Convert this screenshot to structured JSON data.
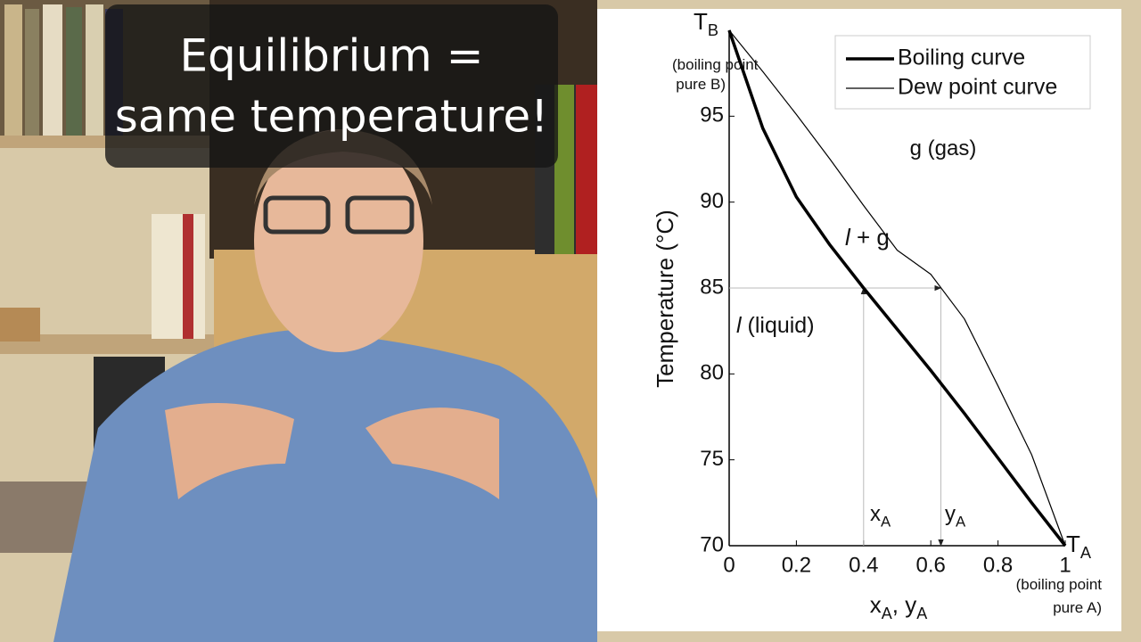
{
  "caption": [
    "Equilibrium =",
    "same temperature!"
  ],
  "chart_data": {
    "type": "line",
    "xlabel": [
      {
        "text": "x",
        "sub": "A"
      },
      {
        "text": ", y",
        "sub": "A"
      }
    ],
    "ylabel": "Temperature (°C)",
    "xlim": [
      0,
      1
    ],
    "ylim": [
      70,
      100
    ],
    "xticks": [
      0,
      0.2,
      0.4,
      0.6,
      0.8,
      1
    ],
    "yticks": [
      70,
      75,
      80,
      85,
      90,
      95
    ],
    "x": [
      0,
      0.1,
      0.2,
      0.3,
      0.4,
      0.5,
      0.6,
      0.7,
      0.8,
      0.9,
      1
    ],
    "series": [
      {
        "name": "Boiling curve",
        "color": "#000000",
        "width": 3.5,
        "values": [
          100,
          94.3,
          90.3,
          87.5,
          85,
          82.6,
          80.2,
          77.7,
          75.1,
          72.5,
          70
        ]
      },
      {
        "name": "Dew point curve",
        "color": "#000000",
        "width": 1.2,
        "values": [
          100,
          97.6,
          95.1,
          92.5,
          89.8,
          87.2,
          85.8,
          83.2,
          79.3,
          75.3,
          70
        ]
      }
    ],
    "tie_line": {
      "y": 85,
      "x_liquid": 0.4,
      "x_vapor": 0.63
    },
    "legend": "upper right",
    "annotations": [
      {
        "text": "g (gas)"
      },
      {
        "italic": "l",
        "text": " + g"
      },
      {
        "italic": "l",
        "text": " (liquid)"
      },
      {
        "text": "x",
        "sub": "A"
      },
      {
        "text": "y",
        "sub": "A"
      },
      {
        "text": "T",
        "sub": "B"
      },
      {
        "text": "(boiling point"
      },
      {
        "text": "pure B)"
      },
      {
        "text": "T",
        "sub": "A"
      },
      {
        "text": "(boiling point"
      },
      {
        "text": "pure A)"
      }
    ]
  }
}
